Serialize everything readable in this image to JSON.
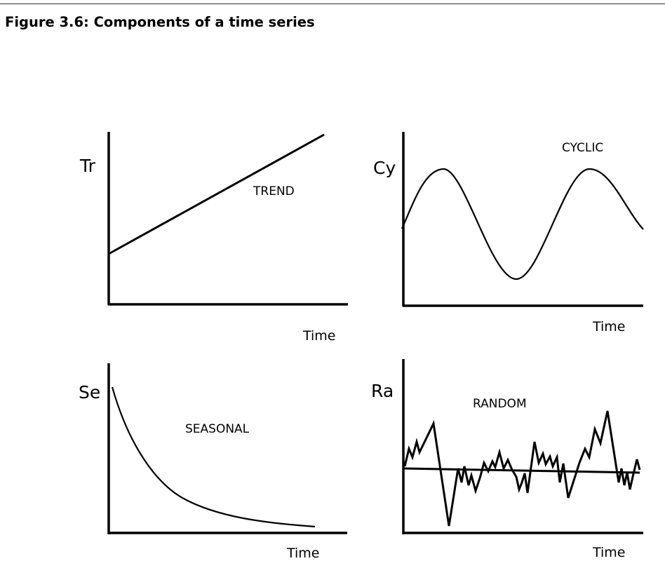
{
  "figure": {
    "title": "Figure 3.6: Components of a time series"
  },
  "panels": {
    "trend": {
      "axis_letter": "Tr",
      "caption": "TREND",
      "x_label": "Time"
    },
    "cyclic": {
      "axis_letter": "Cy",
      "caption": "CYCLIC",
      "x_label": "Time"
    },
    "seasonal": {
      "axis_letter": "Se",
      "caption": "SEASONAL",
      "x_label": "Time"
    },
    "random": {
      "axis_letter": "Ra",
      "caption": "RANDOM",
      "x_label": "Time"
    }
  },
  "colors": {
    "ink": "#000000",
    "rule": "#333333"
  }
}
